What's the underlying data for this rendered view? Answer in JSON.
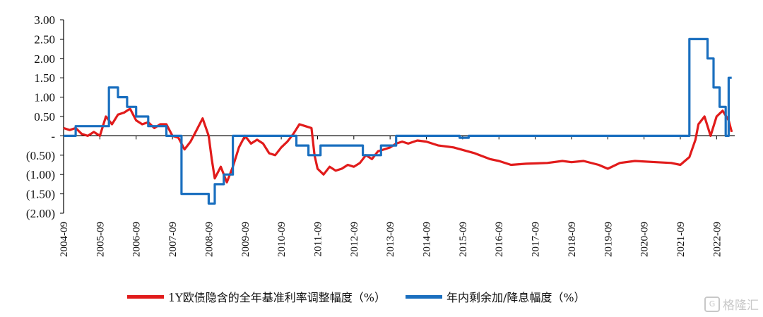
{
  "chart_data": {
    "type": "line",
    "y_ticks": [
      "3.00",
      "2.50",
      "2.00",
      "1.50",
      "1.00",
      "0.50",
      "-",
      "(0.50)",
      "(1.00)",
      "(1.50)",
      "(2.00)"
    ],
    "y_tick_values": [
      3,
      2.5,
      2,
      1.5,
      1,
      0.5,
      0,
      -0.5,
      -1,
      -1.5,
      -2
    ],
    "ylim": [
      -2,
      3
    ],
    "x_ticks": [
      "2004-09",
      "2005-09",
      "2006-09",
      "2007-09",
      "2008-09",
      "2009-09",
      "2010-09",
      "2011-09",
      "2012-09",
      "2013-09",
      "2014-09",
      "2015-09",
      "2016-09",
      "2017-09",
      "2018-09",
      "2019-09",
      "2020-09",
      "2021-09",
      "2022-09"
    ],
    "xlim": [
      "2004-09",
      "2023-03"
    ],
    "grid": false,
    "legend_position": "bottom",
    "series": [
      {
        "name": "1Y欧债隐含的全年基准利率调整幅度（%）",
        "color": "#e11b1b",
        "points": [
          [
            "2004-09",
            0.2
          ],
          [
            "2004-11",
            0.15
          ],
          [
            "2005-01",
            0.2
          ],
          [
            "2005-03",
            0.05
          ],
          [
            "2005-05",
            0.0
          ],
          [
            "2005-07",
            0.1
          ],
          [
            "2005-09",
            0.0
          ],
          [
            "2005-11",
            0.5
          ],
          [
            "2006-01",
            0.3
          ],
          [
            "2006-03",
            0.55
          ],
          [
            "2006-05",
            0.6
          ],
          [
            "2006-07",
            0.7
          ],
          [
            "2006-09",
            0.4
          ],
          [
            "2006-11",
            0.3
          ],
          [
            "2007-01",
            0.35
          ],
          [
            "2007-03",
            0.2
          ],
          [
            "2007-05",
            0.3
          ],
          [
            "2007-07",
            0.3
          ],
          [
            "2007-09",
            0.0
          ],
          [
            "2007-11",
            -0.05
          ],
          [
            "2008-01",
            -0.35
          ],
          [
            "2008-03",
            -0.15
          ],
          [
            "2008-05",
            0.15
          ],
          [
            "2008-07",
            0.45
          ],
          [
            "2008-09",
            0.0
          ],
          [
            "2008-10",
            -0.6
          ],
          [
            "2008-11",
            -1.1
          ],
          [
            "2009-01",
            -0.8
          ],
          [
            "2009-03",
            -1.2
          ],
          [
            "2009-05",
            -0.8
          ],
          [
            "2009-07",
            -0.3
          ],
          [
            "2009-09",
            0.0
          ],
          [
            "2009-11",
            -0.2
          ],
          [
            "2010-01",
            -0.1
          ],
          [
            "2010-03",
            -0.2
          ],
          [
            "2010-05",
            -0.45
          ],
          [
            "2010-07",
            -0.5
          ],
          [
            "2010-09",
            -0.3
          ],
          [
            "2010-11",
            -0.15
          ],
          [
            "2011-01",
            0.05
          ],
          [
            "2011-03",
            0.3
          ],
          [
            "2011-05",
            0.25
          ],
          [
            "2011-07",
            0.2
          ],
          [
            "2011-08",
            -0.5
          ],
          [
            "2011-09",
            -0.85
          ],
          [
            "2011-11",
            -1.0
          ],
          [
            "2012-01",
            -0.8
          ],
          [
            "2012-03",
            -0.9
          ],
          [
            "2012-05",
            -0.85
          ],
          [
            "2012-07",
            -0.75
          ],
          [
            "2012-09",
            -0.8
          ],
          [
            "2012-11",
            -0.7
          ],
          [
            "2013-01",
            -0.5
          ],
          [
            "2013-03",
            -0.6
          ],
          [
            "2013-05",
            -0.4
          ],
          [
            "2013-07",
            -0.35
          ],
          [
            "2013-09",
            -0.3
          ],
          [
            "2013-11",
            -0.2
          ],
          [
            "2014-01",
            -0.15
          ],
          [
            "2014-03",
            -0.2
          ],
          [
            "2014-06",
            -0.12
          ],
          [
            "2014-09",
            -0.15
          ],
          [
            "2015-01",
            -0.25
          ],
          [
            "2015-06",
            -0.3
          ],
          [
            "2016-01",
            -0.45
          ],
          [
            "2016-06",
            -0.6
          ],
          [
            "2016-09",
            -0.65
          ],
          [
            "2017-01",
            -0.75
          ],
          [
            "2017-06",
            -0.72
          ],
          [
            "2018-01",
            -0.7
          ],
          [
            "2018-06",
            -0.65
          ],
          [
            "2018-09",
            -0.68
          ],
          [
            "2019-01",
            -0.65
          ],
          [
            "2019-06",
            -0.75
          ],
          [
            "2019-09",
            -0.85
          ],
          [
            "2020-01",
            -0.7
          ],
          [
            "2020-06",
            -0.65
          ],
          [
            "2021-01",
            -0.68
          ],
          [
            "2021-06",
            -0.7
          ],
          [
            "2021-09",
            -0.75
          ],
          [
            "2021-12",
            -0.55
          ],
          [
            "2022-02",
            -0.1
          ],
          [
            "2022-03",
            0.3
          ],
          [
            "2022-05",
            0.5
          ],
          [
            "2022-07",
            0.0
          ],
          [
            "2022-09",
            0.5
          ],
          [
            "2022-11",
            0.65
          ],
          [
            "2023-01",
            0.4
          ],
          [
            "2023-02",
            0.1
          ]
        ]
      },
      {
        "name": "年内剩余加/降息幅度（%）",
        "color": "#1a6fbf",
        "points": [
          [
            "2004-09",
            0.0
          ],
          [
            "2005-01",
            0.0
          ],
          [
            "2005-01",
            0.25
          ],
          [
            "2005-12",
            0.25
          ],
          [
            "2005-12",
            1.25
          ],
          [
            "2006-03",
            1.25
          ],
          [
            "2006-03",
            1.0
          ],
          [
            "2006-06",
            1.0
          ],
          [
            "2006-06",
            0.75
          ],
          [
            "2006-09",
            0.75
          ],
          [
            "2006-09",
            0.5
          ],
          [
            "2007-01",
            0.5
          ],
          [
            "2007-01",
            0.25
          ],
          [
            "2007-07",
            0.25
          ],
          [
            "2007-07",
            0.0
          ],
          [
            "2007-12",
            0.0
          ],
          [
            "2007-12",
            -1.5
          ],
          [
            "2008-09",
            -1.5
          ],
          [
            "2008-09",
            -1.75
          ],
          [
            "2008-11",
            -1.75
          ],
          [
            "2008-11",
            -1.25
          ],
          [
            "2009-02",
            -1.25
          ],
          [
            "2009-02",
            -1.0
          ],
          [
            "2009-05",
            -1.0
          ],
          [
            "2009-05",
            0.0
          ],
          [
            "2011-02",
            0.0
          ],
          [
            "2011-02",
            -0.25
          ],
          [
            "2011-06",
            -0.25
          ],
          [
            "2011-06",
            -0.5
          ],
          [
            "2011-10",
            -0.5
          ],
          [
            "2011-10",
            -0.25
          ],
          [
            "2012-12",
            -0.25
          ],
          [
            "2012-12",
            -0.5
          ],
          [
            "2013-06",
            -0.5
          ],
          [
            "2013-06",
            -0.25
          ],
          [
            "2013-11",
            -0.25
          ],
          [
            "2013-11",
            0.0
          ],
          [
            "2015-08",
            0.0
          ],
          [
            "2015-08",
            -0.05
          ],
          [
            "2015-11",
            -0.05
          ],
          [
            "2015-11",
            0.0
          ],
          [
            "2021-09",
            0.0
          ],
          [
            "2021-12",
            0.0
          ],
          [
            "2021-12",
            2.5
          ],
          [
            "2022-06",
            2.5
          ],
          [
            "2022-06",
            2.0
          ],
          [
            "2022-08",
            2.0
          ],
          [
            "2022-08",
            1.25
          ],
          [
            "2022-10",
            1.25
          ],
          [
            "2022-10",
            0.75
          ],
          [
            "2022-12",
            0.75
          ],
          [
            "2022-12",
            0.0
          ],
          [
            "2023-01",
            0.0
          ],
          [
            "2023-01",
            1.5
          ],
          [
            "2023-02",
            1.5
          ]
        ]
      }
    ]
  },
  "legend": {
    "series_1": "1Y欧债隐含的全年基准利率调整幅度（%）",
    "series_2": "年内剩余加/降息幅度（%）"
  },
  "watermark": "格隆汇",
  "icon": "gelonghui-logo-icon"
}
